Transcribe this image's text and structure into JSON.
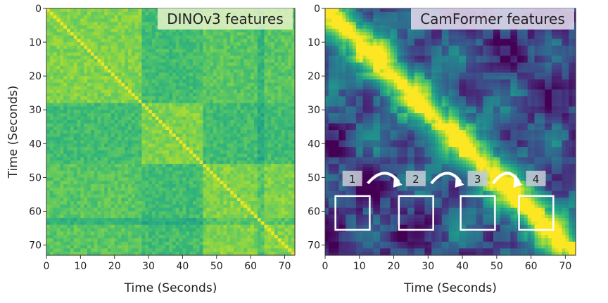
{
  "chart_data": [
    {
      "type": "heatmap",
      "title": "DINOv3 features",
      "xlabel": "Time (Seconds)",
      "ylabel": "Time (Seconds)",
      "xlim": [
        0,
        73
      ],
      "ylim": [
        0,
        73
      ],
      "y_inverted": true,
      "xticks": [
        0,
        10,
        20,
        30,
        40,
        50,
        60,
        70
      ],
      "yticks": [
        0,
        10,
        20,
        30,
        40,
        50,
        60,
        70
      ],
      "colormap": "viridis",
      "description_of_values": "self-similarity matrix; uniformly high similarity with block structure around 0-28, 28-46 and 46-73 s",
      "blocks": [
        [
          0,
          28
        ],
        [
          28,
          46
        ],
        [
          46,
          73
        ]
      ]
    },
    {
      "type": "heatmap",
      "title": "CamFormer features",
      "xlabel": "Time (Seconds)",
      "ylabel": "",
      "xlim": [
        0,
        73
      ],
      "ylim": [
        0,
        73
      ],
      "y_inverted": true,
      "xticks": [
        0,
        10,
        20,
        30,
        40,
        50,
        60,
        70
      ],
      "yticks": [
        0,
        10,
        20,
        30,
        40,
        50,
        60,
        70
      ],
      "colormap": "viridis",
      "description_of_values": "self-similarity matrix; strong diagonal with lower off-diagonal similarity",
      "annotations": [
        {
          "label": "1",
          "x_range": [
            3,
            13
          ],
          "y_range": [
            55.5,
            65.5
          ]
        },
        {
          "label": "2",
          "x_range": [
            21.5,
            31.5
          ],
          "y_range": [
            55.5,
            65.5
          ]
        },
        {
          "label": "3",
          "x_range": [
            39.5,
            49.5
          ],
          "y_range": [
            55.5,
            65.5
          ]
        },
        {
          "label": "4",
          "x_range": [
            56.5,
            66.5
          ],
          "y_range": [
            55.5,
            65.5
          ]
        }
      ]
    }
  ],
  "colors": {
    "viridis_dark": "#440154",
    "viridis_mid": "#21918c",
    "viridis_bright": "#fde725",
    "annotation_box": "#ffffff"
  }
}
